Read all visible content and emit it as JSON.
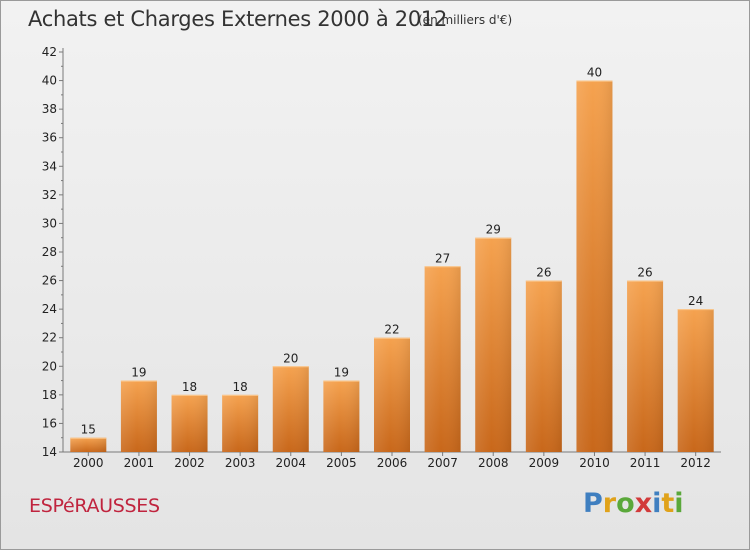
{
  "header": {
    "title": "Achats et Charges Externes 2000 à 2012",
    "subtitle": "(en milliers d'€)"
  },
  "footer": {
    "commune": "ESPéRAUSSES",
    "brand_letters": [
      "P",
      "r",
      "o",
      "x",
      "i",
      "t",
      "i"
    ],
    "brand_colors": [
      "#3f7fc0",
      "#e0a21a",
      "#5aa83a",
      "#d23a3a",
      "#3f7fc0",
      "#e0a21a",
      "#5aa83a"
    ]
  },
  "chart_data": {
    "type": "bar",
    "categories": [
      "2000",
      "2001",
      "2002",
      "2003",
      "2004",
      "2005",
      "2006",
      "2007",
      "2008",
      "2009",
      "2010",
      "2011",
      "2012"
    ],
    "values": [
      15,
      19,
      18,
      18,
      20,
      19,
      22,
      27,
      29,
      26,
      40,
      26,
      24
    ],
    "value_labels": [
      "15",
      "19",
      "18",
      "18",
      "20",
      "19",
      "22",
      "27",
      "29",
      "26",
      "40",
      "26",
      "24"
    ],
    "y_ticks": [
      "14",
      "16",
      "18",
      "20",
      "22",
      "24",
      "26",
      "28",
      "30",
      "32",
      "34",
      "36",
      "38",
      "40",
      "42"
    ],
    "ylim": [
      14,
      42
    ],
    "grid": false,
    "bar_color_top": "#f5a24f",
    "bar_color_bottom": "#c8671a"
  }
}
